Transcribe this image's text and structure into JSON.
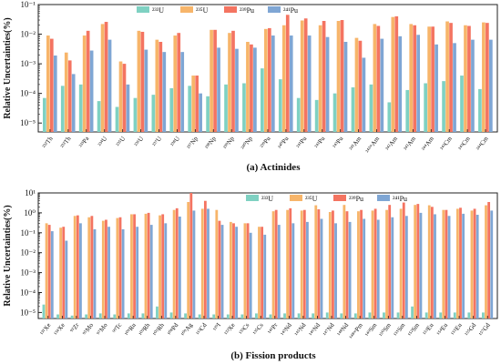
{
  "chart_data": [
    {
      "type": "bar",
      "title": "(a) Actinides",
      "ylabel": "Relative Uncertainties(%)",
      "yscale": "log",
      "ylim": [
        5e-06,
        0.1
      ],
      "yticks": [
        "10⁻⁵",
        "10⁻⁴",
        "10⁻³",
        "10⁻²",
        "10⁻¹"
      ],
      "legend": "top-left-inside",
      "categories": [
        "²³²Th",
        "²³³Th",
        "²³³Pa",
        "²³⁴U",
        "²³⁵U",
        "²³⁶U",
        "²³⁷U",
        "²³⁸U",
        "²³⁷Np",
        "²³⁸Np",
        "²³⁹Np",
        "²⁴⁰Np",
        "²³⁹Pu",
        "²⁴⁰Pu",
        "²⁴¹Pu",
        "²⁴²Pu",
        "²⁴³Pu",
        "²⁴¹Am",
        "²⁴²ᵐAm",
        "²⁴²Am",
        "²⁴³Am",
        "²⁴⁴Am",
        "²⁴²Cm",
        "²⁴³Cm",
        "²⁴⁴Cm"
      ],
      "series": [
        {
          "name": "²³³U",
          "color": "#7fd1c2",
          "values": [
            7e-05,
            0.00018,
            0.0002,
            5.5e-05,
            3.5e-05,
            7e-05,
            9e-05,
            0.00015,
            0.00018,
            8e-05,
            0.0002,
            0.00022,
            0.0007,
            0.0003,
            7e-05,
            6e-05,
            0.0001,
            0.00016,
            0.0002,
            5e-05,
            0.00013,
            0.00022,
            0.00026,
            0.0004,
            0.00014
          ]
        },
        {
          "name": "²³⁵U",
          "color": "#f7b56a",
          "values": [
            0.009,
            0.0024,
            0.009,
            0.022,
            0.0012,
            0.013,
            0.0065,
            0.009,
            0.0004,
            0.014,
            0.011,
            0.0055,
            0.015,
            0.02,
            0.029,
            0.02,
            0.028,
            0.0075,
            0.022,
            0.038,
            0.022,
            0.018,
            0.027,
            0.02,
            0.025
          ]
        },
        {
          "name": "²³⁹Pu",
          "color": "#f47461",
          "values": [
            0.007,
            0.0013,
            0.013,
            0.026,
            0.001,
            0.012,
            0.0055,
            0.011,
            0.0004,
            0.014,
            0.013,
            0.0045,
            0.016,
            0.045,
            0.034,
            0.028,
            0.03,
            0.006,
            0.019,
            0.04,
            0.02,
            0.018,
            0.024,
            0.019,
            0.024
          ]
        },
        {
          "name": "²⁴¹Pu",
          "color": "#7fa6d4",
          "values": [
            0.0019,
            0.00045,
            0.0028,
            0.0065,
            0.0002,
            0.003,
            0.0025,
            0.0025,
            0.0001,
            0.0035,
            0.0032,
            0.0035,
            0.009,
            0.009,
            0.009,
            0.008,
            0.0055,
            0.0016,
            0.007,
            0.0085,
            0.0095,
            0.0045,
            0.005,
            0.0065,
            0.0065
          ]
        }
      ]
    },
    {
      "type": "bar",
      "title": "(b) Fission products",
      "ylabel": "Relative Uncertainties(%)",
      "yscale": "log",
      "ylim": [
        5e-06,
        10
      ],
      "yticks": [
        "10⁻⁵",
        "10⁻⁴",
        "10⁻³",
        "10⁻²",
        "10⁻¹",
        "10⁰",
        "10¹"
      ],
      "legend": "top-right-inside",
      "categories": [
        "¹³¹Xe",
        "¹³⁴Xe",
        "⁹³Zr",
        "⁹⁵Mo",
        "⁹⁷Mo",
        "⁹⁹Tc",
        "¹⁰¹Ru",
        "¹⁰³Rh",
        "¹⁰⁵Rh",
        "¹⁰⁸Pd",
        "¹⁰⁹Ag",
        "¹¹³Cd",
        "¹²⁹I",
        "¹³³Xe",
        "¹³³Cs",
        "¹³⁵Cs",
        "¹⁴¹Pr",
        "¹⁴³Nd",
        "¹⁴⁵Nd",
        "¹⁴⁶Nd",
        "¹⁴⁷Nd",
        "¹⁴⁸Nd",
        "¹⁴⁸ᵐPm",
        "¹⁴⁹Sm",
        "¹⁵⁰Sm",
        "¹⁵¹Sm",
        "¹⁵²Sm",
        "¹⁵³Eu",
        "¹⁵⁴Eu",
        "¹⁵⁵Eu",
        "¹⁵⁵Gd",
        "¹⁵⁷Gd"
      ],
      "series": [
        {
          "name": "²³³U",
          "color": "#7fd1c2",
          "values": [
            2.5e-05,
            8e-06,
            7e-06,
            8e-06,
            9e-06,
            8e-06,
            9e-06,
            9e-06,
            2e-05,
            1e-05,
            9e-06,
            8e-06,
            8e-06,
            8e-06,
            8e-06,
            9e-06,
            8e-06,
            9e-06,
            9e-06,
            9e-06,
            1e-05,
            9e-06,
            9e-06,
            1e-05,
            1e-05,
            1e-05,
            2e-05,
            1e-05,
            1e-05,
            1e-05,
            1e-05,
            1e-05
          ]
        },
        {
          "name": "²³⁵U",
          "color": "#f7b56a",
          "values": [
            0.3,
            0.18,
            0.7,
            0.6,
            0.4,
            0.55,
            0.85,
            0.9,
            0.75,
            1.4,
            3.5,
            1.6,
            1.4,
            0.35,
            0.3,
            0.2,
            1.2,
            1.4,
            1.3,
            2.4,
            1.1,
            2.5,
            1.2,
            1.3,
            1.4,
            1.6,
            2.5,
            2.4,
            1.4,
            1.6,
            1.3,
            2.4
          ]
        },
        {
          "name": "²³⁹Pu",
          "color": "#f47461",
          "values": [
            0.25,
            0.2,
            0.75,
            0.7,
            0.45,
            0.6,
            0.85,
            1.0,
            0.85,
            1.7,
            10,
            4.0,
            0.4,
            0.3,
            0.3,
            0.2,
            1.4,
            1.7,
            1.4,
            1.5,
            1.3,
            1.2,
            1.4,
            1.6,
            2.5,
            3.3,
            2.8,
            2.0,
            1.4,
            1.8,
            1.6,
            3.5
          ]
        },
        {
          "name": "²⁴¹Pu",
          "color": "#7fa6d4",
          "values": [
            0.12,
            0.04,
            0.3,
            0.15,
            0.2,
            0.15,
            0.2,
            0.25,
            0.3,
            0.65,
            1.3,
            1.6,
            0.25,
            0.2,
            0.1,
            0.08,
            0.25,
            0.3,
            0.35,
            0.5,
            0.3,
            0.35,
            0.5,
            0.45,
            0.6,
            0.7,
            1.0,
            0.85,
            0.7,
            0.9,
            0.8,
            1.3
          ]
        }
      ]
    }
  ]
}
